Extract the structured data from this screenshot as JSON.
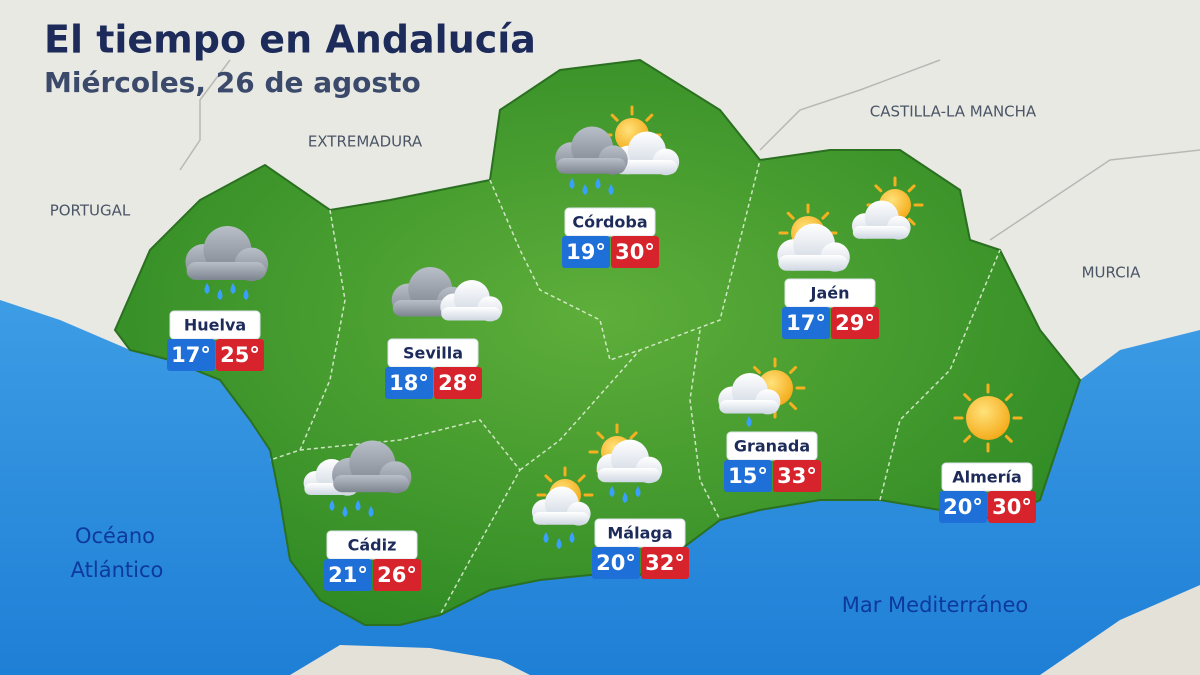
{
  "header": {
    "title": "El tiempo en Andalucía",
    "subtitle": "Miércoles, 26 de agosto"
  },
  "regions": [
    "EXTREMADURA",
    "PORTUGAL",
    "CASTILLA-LA MANCHA",
    "MURCIA"
  ],
  "seas": {
    "atlantic": [
      "Océano",
      "Atlántico"
    ],
    "mediterranean": "Mar Mediterráneo"
  },
  "cities": [
    {
      "name": "Huelva",
      "min": "17°",
      "max": "25°"
    },
    {
      "name": "Sevilla",
      "min": "18°",
      "max": "28°"
    },
    {
      "name": "Córdoba",
      "min": "19°",
      "max": "30°"
    },
    {
      "name": "Jaén",
      "min": "17°",
      "max": "29°"
    },
    {
      "name": "Granada",
      "min": "15°",
      "max": "33°"
    },
    {
      "name": "Almería",
      "min": "20°",
      "max": "30°"
    },
    {
      "name": "Cádiz",
      "min": "21°",
      "max": "26°"
    },
    {
      "name": "Málaga",
      "min": "20°",
      "max": "32°"
    }
  ]
}
